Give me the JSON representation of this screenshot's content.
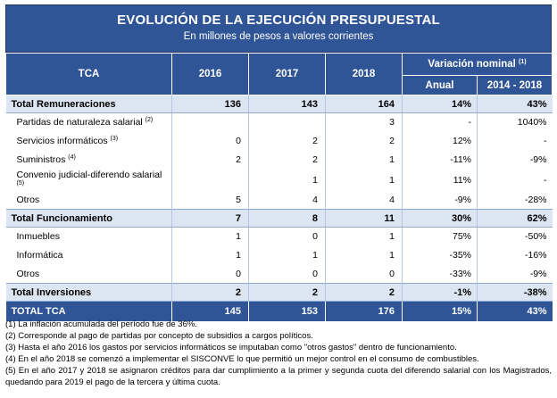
{
  "title": "EVOLUCIÓN DE LA EJECUCIÓN PRESUPUESTAL",
  "subtitle": "En millones de pesos a valores corrientes",
  "header": {
    "tca": "TCA",
    "y2016": "2016",
    "y2017": "2017",
    "y2018": "2018",
    "variacion": "Variación nominal",
    "variacion_ref": "(1)",
    "anual": "Anual",
    "range": "2014 - 2018"
  },
  "rows": [
    {
      "label": "Total Remuneraciones",
      "ref": "",
      "y2016": "136",
      "y2017": "143",
      "y2018": "164",
      "anual": "14%",
      "range": "43%"
    },
    {
      "label": "Partidas de naturaleza salarial",
      "ref": "(2)",
      "y2016": "",
      "y2017": "",
      "y2018": "3",
      "anual": "-",
      "range": "1040%"
    },
    {
      "label": "Servicios informáticos",
      "ref": "(3)",
      "y2016": "0",
      "y2017": "2",
      "y2018": "2",
      "anual": "12%",
      "range": "-"
    },
    {
      "label": "Suministros",
      "ref": "(4)",
      "y2016": "2",
      "y2017": "2",
      "y2018": "1",
      "anual": "-11%",
      "range": "-9%"
    },
    {
      "label": "Convenio judicial-diferendo salarial",
      "ref": "(5)",
      "y2016": "",
      "y2017": "1",
      "y2018": "1",
      "anual": "11%",
      "range": "-"
    },
    {
      "label": "Otros",
      "ref": "",
      "y2016": "5",
      "y2017": "4",
      "y2018": "4",
      "anual": "-9%",
      "range": "-28%"
    },
    {
      "label": "Total Funcionamiento",
      "ref": "",
      "y2016": "7",
      "y2017": "8",
      "y2018": "11",
      "anual": "30%",
      "range": "62%"
    },
    {
      "label": "Inmuebles",
      "ref": "",
      "y2016": "1",
      "y2017": "0",
      "y2018": "1",
      "anual": "75%",
      "range": "-50%"
    },
    {
      "label": "Informática",
      "ref": "",
      "y2016": "1",
      "y2017": "1",
      "y2018": "1",
      "anual": "-35%",
      "range": "-16%"
    },
    {
      "label": "Otros",
      "ref": "",
      "y2016": "0",
      "y2017": "0",
      "y2018": "0",
      "anual": "-33%",
      "range": "-9%"
    },
    {
      "label": "Total Inversiones",
      "ref": "",
      "y2016": "2",
      "y2017": "2",
      "y2018": "2",
      "anual": "-1%",
      "range": "-38%"
    },
    {
      "label": "TOTAL TCA",
      "ref": "",
      "y2016": "145",
      "y2017": "153",
      "y2018": "176",
      "anual": "15%",
      "range": "43%"
    }
  ],
  "notes": [
    "(1) La inflación acumulada del período fue de 36%.",
    "(2) Corresponde al pago de partidas por concepto de subsidios a cargos políticos.",
    "(3) Hasta el año 2016 los gastos por servicios informáticos se imputaban como \"otros gastos\" dentro de funcionamiento.",
    "(4) En el año 2018 se comenzó a implementar el SISCONVE lo que permitió un mejor control en el consumo de combustibles.",
    "(5) En el año 2017 y 2018 se asignaron créditos para dar cumplimiento a la primer y segunda cuota del diferendo salarial con los Magistrados, quedando para 2019 el pago de la tercera y última cuota."
  ]
}
